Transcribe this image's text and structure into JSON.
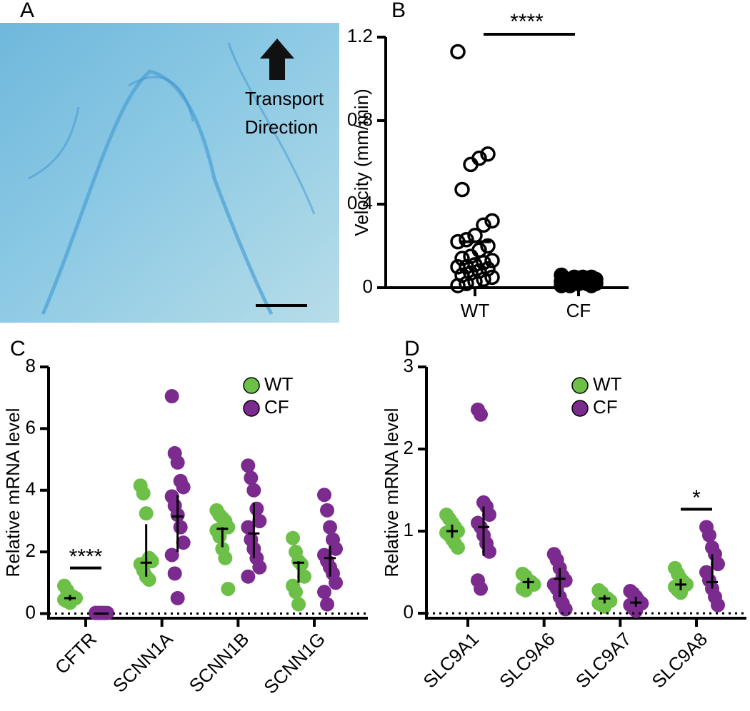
{
  "image_panel": {
    "panel_label": "A",
    "annotation_lines": [
      "Transport",
      "Direction"
    ]
  },
  "chart_data": [
    {
      "type": "dot_strip",
      "panel_label": "B",
      "y_label": "Velocity (mm/min)",
      "categories": [
        "WT",
        "CF"
      ],
      "color": "#000000",
      "groups": [
        {
          "values": [
            1.13,
            0.64,
            0.62,
            0.59,
            0.47,
            0.32,
            0.3,
            0.25,
            0.23,
            0.22,
            0.2,
            0.18,
            0.15,
            0.14,
            0.13,
            0.12,
            0.11,
            0.1,
            0.1,
            0.09,
            0.08,
            0.07,
            0.06,
            0.05,
            0.04,
            0.03,
            0.02,
            0.01
          ],
          "mean": 0.22,
          "filled": false
        },
        {
          "values": [
            0.06,
            0.05,
            0.05,
            0.05,
            0.04,
            0.04,
            0.04,
            0.04,
            0.03,
            0.03,
            0.03,
            0.03,
            0.03,
            0.02,
            0.02,
            0.02,
            0.02,
            0.01,
            0.01,
            0.01
          ],
          "mean": 0.03,
          "filled": true
        }
      ],
      "significance": "****",
      "ylim": [
        0,
        1.2
      ],
      "yticks": [
        0,
        0.4,
        0.8,
        1.2
      ]
    },
    {
      "type": "grouped_strip",
      "panel_label": "C",
      "y_label": "Relative mRNA level",
      "categories": [
        "CFTR",
        "SCNN1A",
        "SCNN1B",
        "SCNN1G"
      ],
      "significance": [
        "****",
        null,
        null,
        null
      ],
      "series": [
        {
          "name": "WT",
          "color": "#6cbf47",
          "values": [
            [
              0.9,
              0.75,
              0.6,
              0.55,
              0.5,
              0.45,
              0.4,
              0.35
            ],
            [
              4.15,
              3.9,
              3.25,
              1.8,
              1.7,
              1.6,
              1.4,
              1.2,
              1.1
            ],
            [
              3.35,
              3.2,
              3.1,
              3.0,
              2.8,
              2.7,
              2.5,
              2.1,
              1.8,
              0.8
            ],
            [
              2.45,
              2.0,
              1.7,
              1.6,
              1.2,
              0.9,
              0.7,
              0.3
            ]
          ],
          "median": [
            0.5,
            1.65,
            2.75,
            1.65
          ],
          "q1": [
            0.42,
            1.2,
            2.15,
            1.0
          ],
          "q3": [
            0.6,
            2.9,
            2.8,
            1.7
          ]
        },
        {
          "name": "CF",
          "color": "#7b2a8e",
          "values": [
            [
              0.02,
              0.02,
              0.02,
              0.02,
              0.02,
              0.02,
              0.02,
              0.02
            ],
            [
              7.05,
              5.2,
              4.9,
              4.3,
              4.1,
              3.8,
              3.5,
              3.2,
              2.8,
              2.3,
              1.9,
              1.3,
              0.5
            ],
            [
              4.8,
              4.4,
              4.0,
              3.4,
              3.0,
              2.8,
              2.4,
              2.1,
              1.8,
              1.5,
              1.2
            ],
            [
              3.85,
              3.35,
              2.8,
              2.4,
              2.1,
              1.9,
              1.7,
              1.5,
              1.3,
              1.0,
              0.7,
              0.3
            ]
          ],
          "median": [
            0,
            3.15,
            2.6,
            1.8
          ],
          "q1": [
            0,
            2.0,
            1.8,
            1.2
          ],
          "q3": [
            0,
            3.85,
            3.6,
            2.2
          ]
        }
      ],
      "ylim": [
        -0.15,
        8
      ],
      "yticks": [
        0,
        2,
        4,
        6,
        8
      ]
    },
    {
      "type": "grouped_strip",
      "panel_label": "D",
      "y_label": "Relative mRNA level",
      "categories": [
        "SLC9A1",
        "SLC9A6",
        "SLC9A7",
        "SLC9A8"
      ],
      "significance": [
        null,
        null,
        null,
        "*"
      ],
      "series": [
        {
          "name": "WT",
          "color": "#6cbf47",
          "values": [
            [
              1.2,
              1.15,
              1.1,
              1.05,
              1.0,
              0.98,
              0.95,
              0.9,
              0.85,
              0.8
            ],
            [
              0.48,
              0.45,
              0.4,
              0.38,
              0.35,
              0.3,
              0.28
            ],
            [
              0.28,
              0.25,
              0.2,
              0.18,
              0.15,
              0.12,
              0.1,
              0.08
            ],
            [
              0.55,
              0.48,
              0.42,
              0.38,
              0.35,
              0.32,
              0.28,
              0.25
            ]
          ],
          "median": [
            1.0,
            0.38,
            0.18,
            0.35
          ],
          "q1": [
            0.92,
            0.3,
            0.12,
            0.28
          ],
          "q3": [
            1.08,
            0.43,
            0.22,
            0.42
          ]
        },
        {
          "name": "CF",
          "color": "#7b2a8e",
          "values": [
            [
              2.48,
              2.42,
              1.35,
              1.3,
              1.2,
              1.1,
              1.05,
              0.95,
              0.85,
              0.75,
              0.4,
              0.3
            ],
            [
              0.72,
              0.65,
              0.55,
              0.45,
              0.4,
              0.35,
              0.3,
              0.2,
              0.12,
              0.05
            ],
            [
              0.27,
              0.24,
              0.2,
              0.15,
              0.12,
              0.1,
              0.06,
              0.03
            ],
            [
              1.05,
              0.95,
              0.8,
              0.72,
              0.6,
              0.5,
              0.4,
              0.3,
              0.2,
              0.1
            ]
          ],
          "median": [
            1.05,
            0.42,
            0.13,
            0.38
          ],
          "q1": [
            0.7,
            0.2,
            0.08,
            0.3
          ],
          "q3": [
            1.3,
            0.55,
            0.2,
            0.72
          ]
        }
      ],
      "ylim": [
        -0.06,
        3
      ],
      "yticks": [
        0,
        1,
        2,
        3
      ]
    }
  ]
}
